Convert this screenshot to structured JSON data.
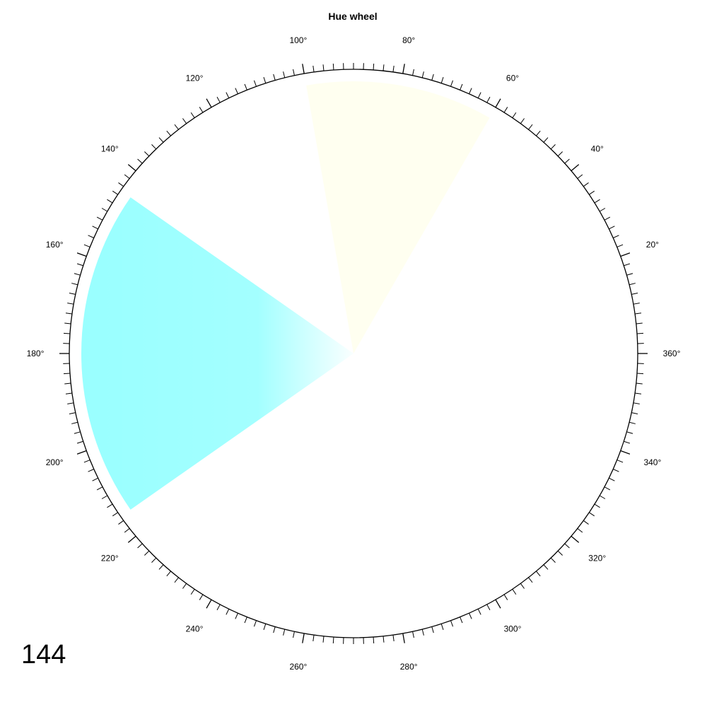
{
  "chart_data": {
    "type": "polar",
    "title": "Hue wheel",
    "angle_range": [
      0,
      360
    ],
    "minor_tick_step_deg": 2,
    "major_tick_step_deg": 20,
    "tick_labels": [
      "20°",
      "40°",
      "60°",
      "80°",
      "100°",
      "120°",
      "140°",
      "160°",
      "180°",
      "200°",
      "220°",
      "240°",
      "260°",
      "280°",
      "300°",
      "320°",
      "340°",
      "360°"
    ],
    "wedges": [
      {
        "hue_from": 60,
        "hue_to": 100,
        "color": "#fffff0",
        "radial_fade": false
      },
      {
        "hue_from": 145,
        "hue_to": 215,
        "color": "#99ffff",
        "radial_fade": true
      }
    ]
  },
  "corner_number": "144"
}
